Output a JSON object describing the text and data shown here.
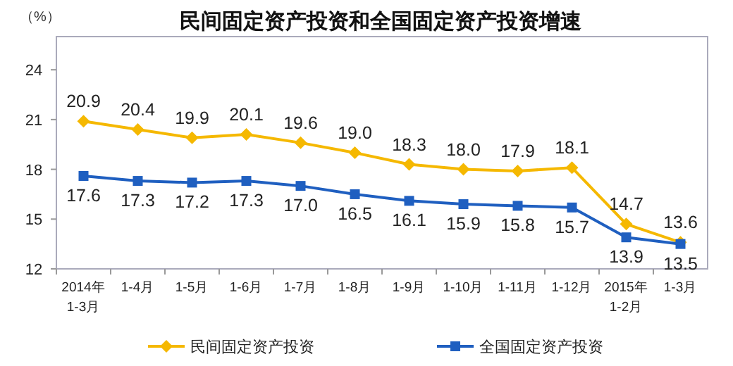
{
  "chart_data": {
    "type": "line",
    "title": "民间固定资产投资和全国固定资产投资增速",
    "ylabel": "（%）",
    "categories": [
      "2014年\n1-3月",
      "1-4月",
      "1-5月",
      "1-6月",
      "1-7月",
      "1-8月",
      "1-9月",
      "1-10月",
      "1-11月",
      "1-12月",
      "2015年\n1-2月",
      "1-3月"
    ],
    "series": [
      {
        "name": "民间固定资产投资",
        "color": "#f5b800",
        "marker": "diamond",
        "values": [
          20.9,
          20.4,
          19.9,
          20.1,
          19.6,
          19.0,
          18.3,
          18.0,
          17.9,
          18.1,
          14.7,
          13.6
        ],
        "value_labels": [
          "20.9",
          "20.4",
          "19.9",
          "20.1",
          "19.6",
          "19.0",
          "18.3",
          "18.0",
          "17.9",
          "18.1",
          "14.7",
          "13.6"
        ]
      },
      {
        "name": "全国固定资产投资",
        "color": "#1f5fc0",
        "marker": "square",
        "values": [
          17.6,
          17.3,
          17.2,
          17.3,
          17.0,
          16.5,
          16.1,
          15.9,
          15.8,
          15.7,
          13.9,
          13.5
        ],
        "value_labels": [
          "17.6",
          "17.3",
          "17.2",
          "17.3",
          "17.0",
          "16.5",
          "16.1",
          "15.9",
          "15.8",
          "15.7",
          "13.9",
          "13.5"
        ]
      }
    ],
    "ylim": [
      12,
      26
    ],
    "yticks": [
      12,
      15,
      18,
      21,
      24
    ],
    "grid": false,
    "legend": "bottom"
  }
}
